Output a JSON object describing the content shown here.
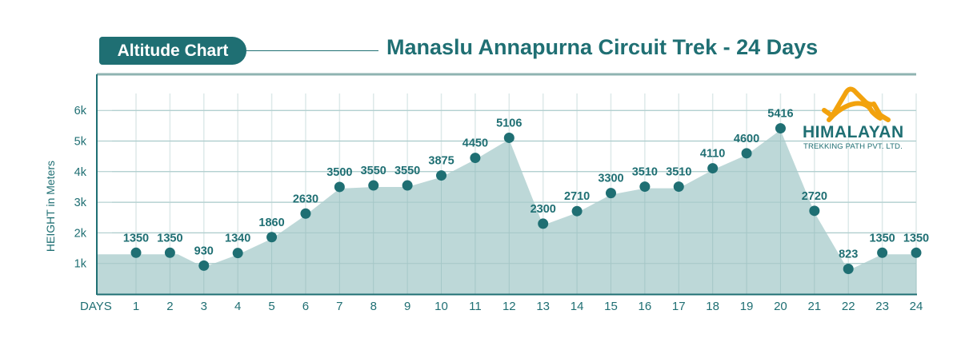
{
  "header": {
    "badge_label": "Altitude Chart",
    "title": "Manaslu Annapurna Circuit Trek - 24 Days"
  },
  "logo": {
    "icon": "mountain-icon",
    "name": "HIMALAYAN",
    "subtitle": "TREKKING PATH PVT. LTD."
  },
  "colors": {
    "primary": "#1f6f73",
    "area_fill": "#b9d6d6",
    "frame_top": "#8fb3b1",
    "grid": "#dde9e9",
    "logo_accent": "#f2a20d"
  },
  "axes": {
    "x_label": "DAYS",
    "y_label": "HEIGHT in Meters",
    "y_ticks": [
      "1k",
      "2k",
      "3k",
      "4k",
      "5k",
      "6k"
    ]
  },
  "chart_data": {
    "type": "area",
    "title": "Manaslu Annapurna Circuit Trek - 24 Days",
    "subtitle": "Altitude Chart",
    "xlabel": "DAYS",
    "ylabel": "HEIGHT in Meters",
    "categories": [
      1,
      2,
      3,
      4,
      5,
      6,
      7,
      8,
      9,
      10,
      11,
      12,
      13,
      14,
      15,
      16,
      17,
      18,
      19,
      20,
      21,
      22,
      23,
      24
    ],
    "values": [
      1350,
      1350,
      930,
      1340,
      1860,
      2630,
      3500,
      3550,
      3550,
      3875,
      4450,
      5106,
      2300,
      2710,
      3300,
      3510,
      3510,
      4110,
      4600,
      5416,
      2720,
      823,
      1350,
      1350
    ],
    "labels": [
      "1350",
      "1350",
      "930",
      "1340",
      "1860",
      "2630",
      "3500",
      "3550",
      "3550",
      "3875",
      "4450",
      "5106",
      "2300",
      "2710",
      "3300",
      "3510",
      "3510",
      "4110",
      "4600",
      "5416",
      "2720",
      "823",
      "1350",
      "1350"
    ],
    "ylim": [
      0,
      6000
    ],
    "y_ticks": [
      1000,
      2000,
      3000,
      4000,
      5000,
      6000
    ],
    "y_tick_labels": [
      "1k",
      "2k",
      "3k",
      "4k",
      "5k",
      "6k"
    ],
    "grid": true,
    "legend": null
  }
}
